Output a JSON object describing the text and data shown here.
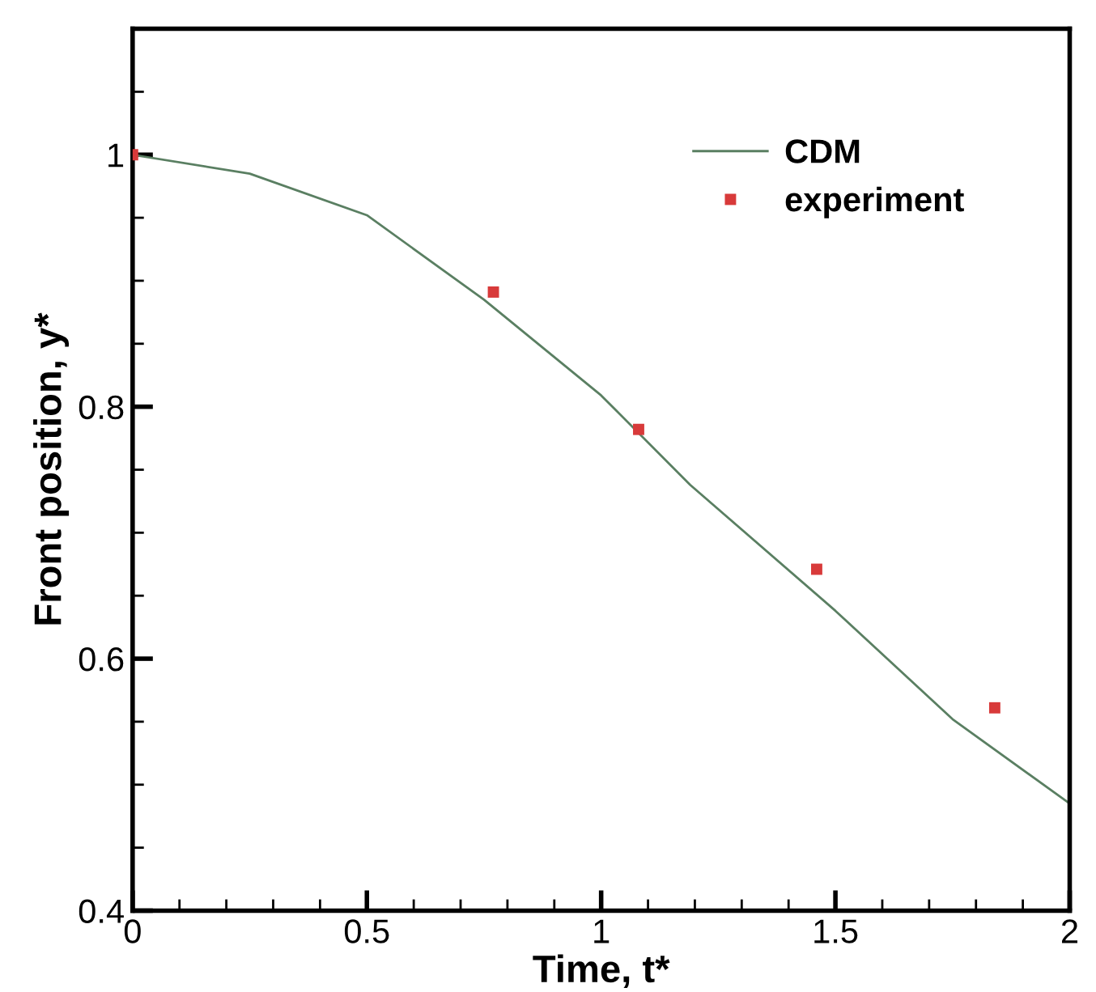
{
  "chart_data": {
    "type": "line",
    "xlabel": "Time, t*",
    "ylabel": "Front position, y*",
    "xlim": [
      0,
      2
    ],
    "xticks": [
      0,
      0.5,
      1,
      1.5,
      2
    ],
    "ylim": [
      0.4,
      1.1
    ],
    "yticks": [
      0.4,
      0.6,
      0.8,
      1
    ],
    "grid": false,
    "legend": "top right",
    "series": [
      {
        "name": "CDM",
        "color": "#5a7f62",
        "marker": "none",
        "line_style": "solid",
        "x": [
          0,
          0.25,
          0.5,
          0.75,
          1.0,
          1.19,
          1.5,
          1.75,
          2.0
        ],
        "values": [
          1.0,
          0.985,
          0.952,
          0.885,
          0.809,
          0.738,
          0.638,
          0.552,
          0.485
        ]
      },
      {
        "name": "experiment",
        "type": "scatter",
        "color": "#d83a3a",
        "marker": "square",
        "x": [
          0,
          0.77,
          1.08,
          1.46,
          1.84
        ],
        "values": [
          1.0,
          0.891,
          0.782,
          0.671,
          0.561
        ]
      }
    ]
  }
}
